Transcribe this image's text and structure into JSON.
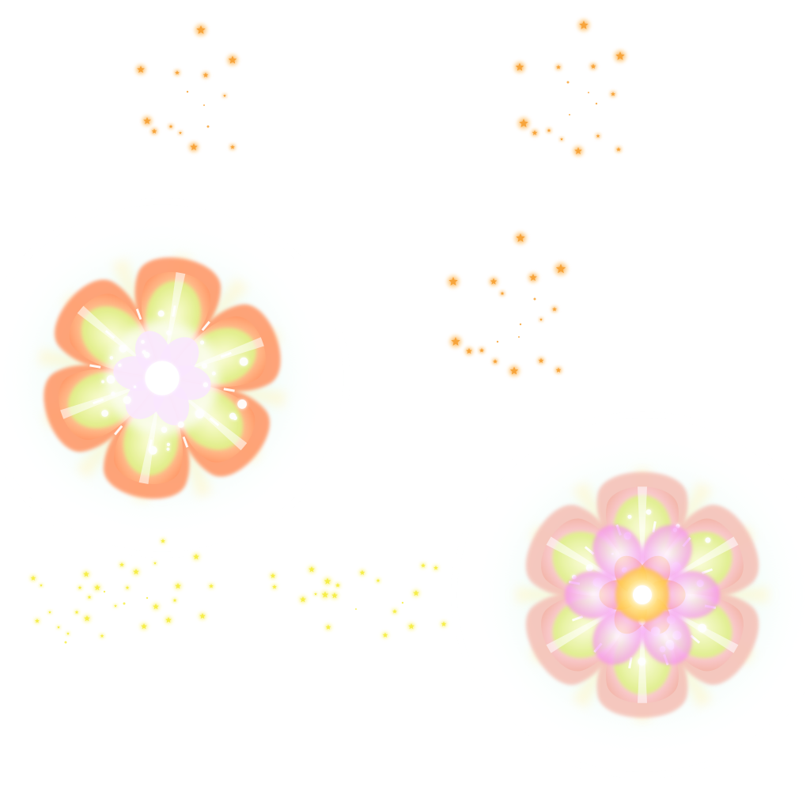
{
  "sheet": {
    "background": "#ffffff",
    "palette": {
      "orange_star": "#f7a43a",
      "orange_star_glow": "#ffcf8a",
      "yellow_star": "#f6ee4a",
      "yellow_star_glow": "#fffab8",
      "petal_peach": "#ffb48a",
      "petal_peach_deep": "#ff9a6a",
      "petal_lime": "#e6f59a",
      "petal_pink": "#ffb3f0",
      "petal_rose_edge": "#f5c2b8",
      "center_gold": "#ffd46a",
      "halo_mint": "#d9fbf4",
      "ray_light": "#fff6c8"
    },
    "assets": [
      {
        "name": "orange-star-cluster-top-left",
        "icon": "star-sparkle-icon",
        "color": "orange"
      },
      {
        "name": "orange-star-cluster-top-right",
        "icon": "star-sparkle-icon",
        "color": "orange"
      },
      {
        "name": "orange-star-cluster-middle-right",
        "icon": "star-sparkle-icon",
        "color": "orange"
      },
      {
        "name": "peach-lime-flower-burst",
        "icon": "flower-burst-icon",
        "petals": 6
      },
      {
        "name": "yellow-star-cluster-bottom-left",
        "icon": "star-sparkle-icon",
        "color": "yellow"
      },
      {
        "name": "yellow-star-cluster-bottom-center",
        "icon": "star-sparkle-icon",
        "color": "yellow"
      },
      {
        "name": "pink-lime-flower-burst",
        "icon": "flower-burst-icon",
        "petals": 6
      }
    ]
  }
}
